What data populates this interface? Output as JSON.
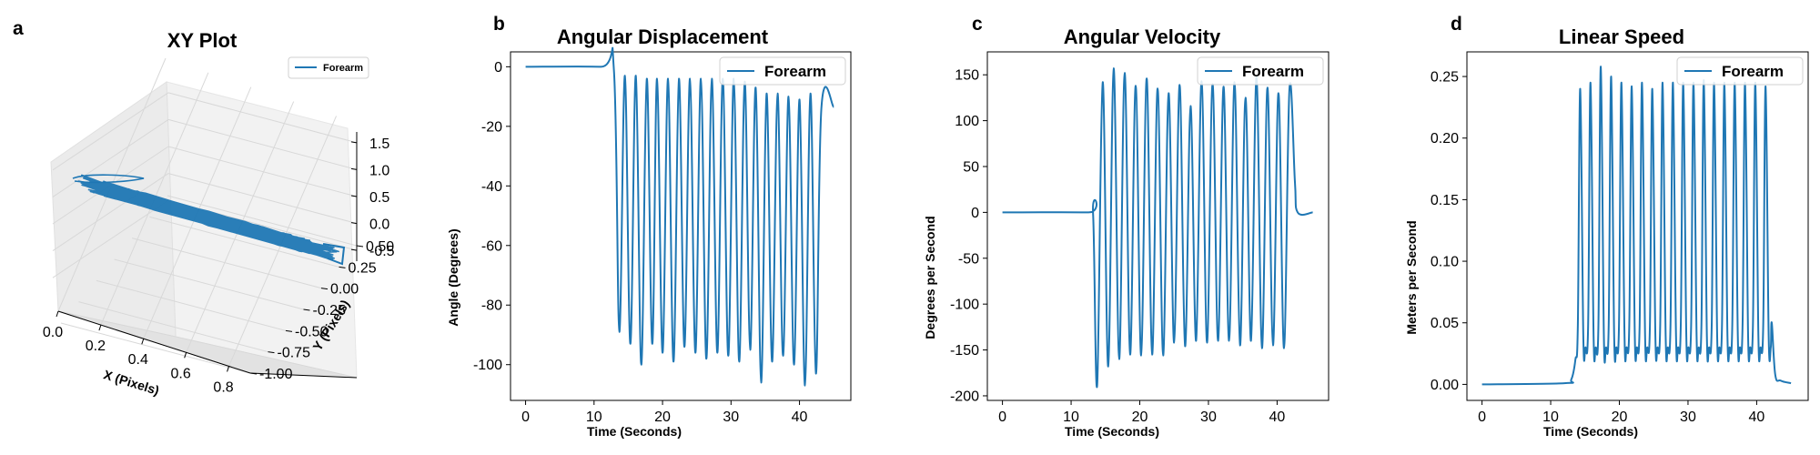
{
  "colors": {
    "series": "#1f77b4",
    "axis": "#000000",
    "pane": "#f2f2f2",
    "grid": "#dcdcdc"
  },
  "chart_data": [
    {
      "panel": "a",
      "type": "line-3d",
      "title": "XY Plot",
      "xlabel": "X (Pixels)",
      "ylabel": "Y (Pixels)",
      "zlabel": "",
      "xticks": [
        "0.0",
        "0.2",
        "0.4",
        "0.6",
        "0.8"
      ],
      "yticks": [
        "-1.00",
        "-0.75",
        "-0.50",
        "-0.25",
        "0.00",
        "0.25",
        "0.50"
      ],
      "zticks": [
        "-0.5",
        "0.0",
        "0.5",
        "1.0",
        "1.5"
      ],
      "xlim": [
        0,
        0.9
      ],
      "ylim": [
        -1.0,
        0.5
      ],
      "zlim": [
        -0.7,
        1.7
      ],
      "legend": {
        "entries": [
          "Forearm"
        ],
        "placement": "top-right"
      },
      "series": [
        {
          "name": "Forearm"
        }
      ]
    },
    {
      "panel": "b",
      "type": "line",
      "title": "Angular Displacement",
      "xlabel": "Time (Seconds)",
      "ylabel": "Angle (Degrees)",
      "xlim": [
        -2.2,
        47.5
      ],
      "ylim": [
        -112,
        5
      ],
      "xticks": [
        0,
        10,
        20,
        30,
        40
      ],
      "yticks": [
        0,
        -20,
        -40,
        -60,
        -80,
        -100
      ],
      "legend": {
        "entries": [
          "Forearm"
        ],
        "placement": "top-right"
      },
      "series": [
        {
          "name": "Forearm",
          "baseline": [
            [
              0,
              0
            ],
            [
              11,
              0
            ],
            [
              12.9,
              -1
            ]
          ],
          "peaks_x": [
            14.5,
            16.1,
            17.7,
            19.2,
            20.8,
            22.4,
            24.0,
            25.6,
            27.2,
            28.8,
            30.4,
            32.0,
            33.6,
            35.2,
            36.8,
            38.4,
            40.0,
            41.6
          ],
          "peaks_y": [
            -3,
            -3,
            -4,
            -4,
            -4,
            -4,
            -4,
            -4,
            -4,
            -4,
            -4,
            -5,
            -7,
            -9,
            -9,
            -10,
            -11,
            -9
          ],
          "troughs_x": [
            13.7,
            15.3,
            16.9,
            18.5,
            20.0,
            21.6,
            23.2,
            24.8,
            26.4,
            28.0,
            29.6,
            31.2,
            32.8,
            34.4,
            36.0,
            37.6,
            39.2,
            40.8,
            42.4
          ],
          "troughs_y": [
            -89,
            -93,
            -100,
            -93,
            -96,
            -99,
            -94,
            -96,
            -98,
            -96,
            -97,
            -99,
            -95,
            -106,
            -99,
            -97,
            -100,
            -107,
            -103
          ],
          "tail": [
            [
              43.2,
              -14
            ],
            [
              45,
              -13.5
            ]
          ]
        }
      ]
    },
    {
      "panel": "c",
      "type": "line",
      "title": "Angular Velocity",
      "xlabel": "Time (Seconds)",
      "ylabel": "Degrees per Second",
      "xlim": [
        -2.2,
        47.5
      ],
      "ylim": [
        -205,
        175
      ],
      "xticks": [
        0,
        10,
        20,
        30,
        40
      ],
      "yticks": [
        150,
        100,
        50,
        0,
        -50,
        -100,
        -150,
        -200
      ],
      "legend": {
        "entries": [
          "Forearm"
        ],
        "placement": "top-right"
      },
      "series": [
        {
          "name": "Forearm",
          "baseline": [
            [
              0,
              0
            ],
            [
              12.5,
              0
            ],
            [
              13.2,
              -2
            ]
          ],
          "troughs_x": [
            13.8,
            15.4,
            17.0,
            18.6,
            20.2,
            21.8,
            23.4,
            25.0,
            26.6,
            28.2,
            29.8,
            31.4,
            33.0,
            34.6,
            36.2,
            37.8,
            39.4,
            41.0
          ],
          "troughs_y": [
            -188,
            -168,
            -160,
            -155,
            -156,
            -155,
            -156,
            -142,
            -146,
            -140,
            -142,
            -140,
            -140,
            -145,
            -140,
            -148,
            -145,
            -148
          ],
          "peaks_x": [
            14.6,
            16.2,
            17.8,
            19.4,
            21.0,
            22.6,
            24.2,
            25.8,
            27.4,
            29.0,
            30.6,
            32.2,
            33.8,
            35.4,
            37.0,
            38.6,
            40.2,
            41.8
          ],
          "peaks_y": [
            142,
            157,
            152,
            138,
            146,
            135,
            130,
            139,
            116,
            143,
            140,
            137,
            142,
            125,
            148,
            136,
            130,
            135
          ],
          "tail": [
            [
              42.6,
              33
            ],
            [
              43.0,
              0
            ],
            [
              45.2,
              0
            ]
          ]
        }
      ]
    },
    {
      "panel": "d",
      "type": "line",
      "title": "Linear Speed",
      "xlabel": "Time (Seconds)",
      "ylabel": "Meters per Second",
      "xlim": [
        -2.2,
        47.5
      ],
      "ylim": [
        -0.013,
        0.27
      ],
      "xticks": [
        0,
        10,
        20,
        30,
        40
      ],
      "yticks": [
        "0.00",
        "0.05",
        "0.10",
        "0.15",
        "0.20",
        "0.25"
      ],
      "legend": {
        "entries": [
          "Forearm"
        ],
        "placement": "top-right"
      },
      "series": [
        {
          "name": "Forearm",
          "baseline": [
            [
              0,
              0
            ],
            [
              12.0,
              0.001
            ],
            [
              13.0,
              0.004
            ],
            [
              13.6,
              0.02
            ]
          ],
          "peaks_x": [
            14.3,
            15.8,
            17.3,
            18.8,
            20.3,
            21.8,
            23.3,
            24.8,
            26.3,
            27.8,
            29.3,
            30.8,
            32.3,
            33.8,
            35.3,
            36.8,
            38.3,
            39.8,
            41.3
          ],
          "peaks_y": [
            0.24,
            0.245,
            0.258,
            0.25,
            0.245,
            0.242,
            0.245,
            0.24,
            0.245,
            0.245,
            0.245,
            0.245,
            0.247,
            0.245,
            0.245,
            0.245,
            0.245,
            0.245,
            0.242
          ],
          "valleys_y": 0.03,
          "tail": [
            [
              42.2,
              0.05
            ],
            [
              42.7,
              0.008
            ],
            [
              43.5,
              0.003
            ],
            [
              45.0,
              0.001
            ]
          ]
        }
      ]
    }
  ]
}
